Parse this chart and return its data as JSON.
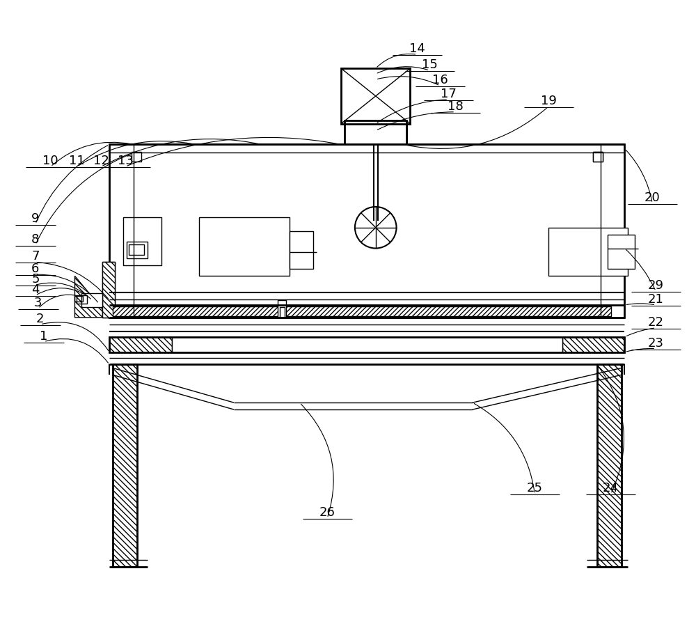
{
  "bg_color": "#ffffff",
  "line_color": "#000000",
  "label_color": "#000000",
  "figsize": [
    10.0,
    8.87
  ],
  "dpi": 100,
  "label_fontsize": 13
}
